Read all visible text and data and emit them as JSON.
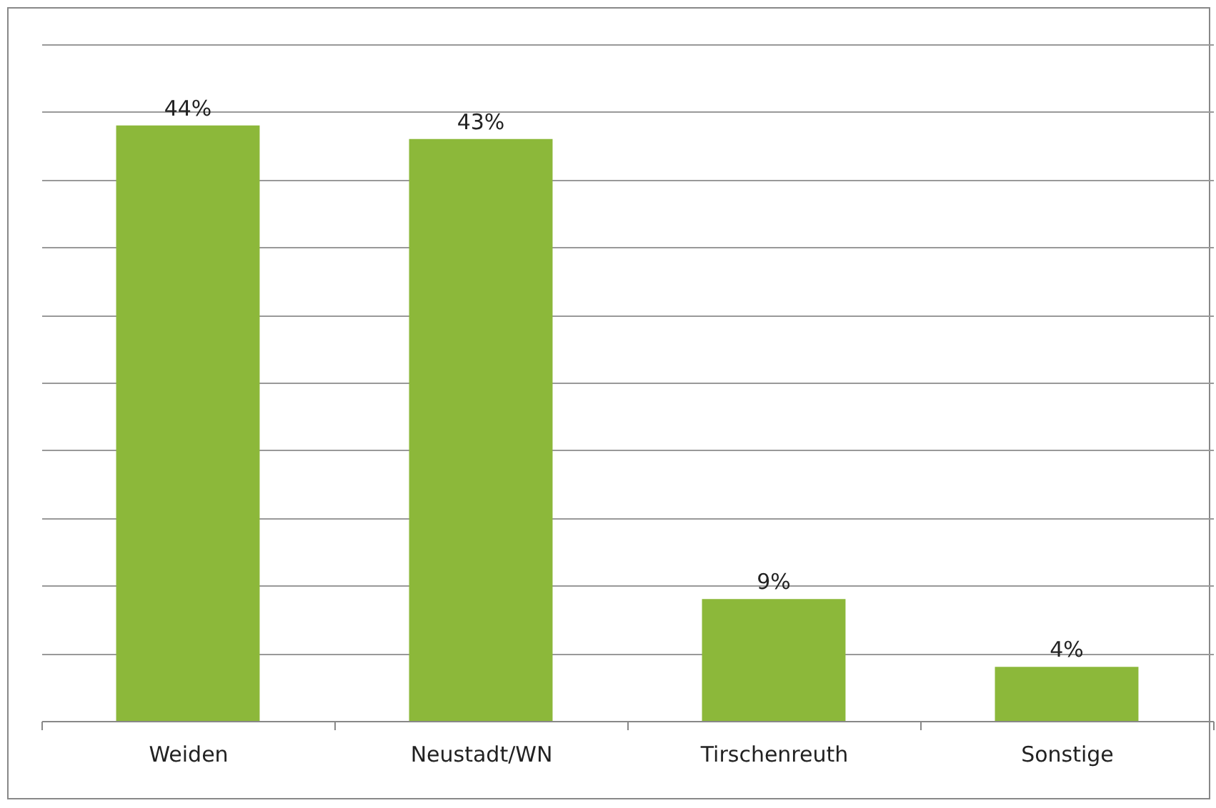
{
  "chart_data": {
    "type": "bar",
    "categories": [
      "Weiden",
      "Neustadt/WN",
      "Tirschenreuth",
      "Sonstige"
    ],
    "values": [
      44,
      43,
      9,
      4
    ],
    "value_labels": [
      "44%",
      "43%",
      "9%",
      "4%"
    ],
    "color": "#8cb83a",
    "ylim": [
      0,
      50
    ],
    "yticks": [
      {
        "value": 0,
        "label": null
      },
      {
        "value": 5,
        "label": null
      },
      {
        "value": 10,
        "label": null
      },
      {
        "value": 15,
        "label": null
      },
      {
        "value": 20,
        "label": null
      },
      {
        "value": 25,
        "label": null
      },
      {
        "value": 30,
        "label": null
      },
      {
        "value": 35,
        "label": null
      },
      {
        "value": 40,
        "label": null
      },
      {
        "value": 45,
        "label": null
      },
      {
        "value": 50,
        "label": null
      }
    ],
    "grid": "y",
    "tick_labels": "x"
  }
}
